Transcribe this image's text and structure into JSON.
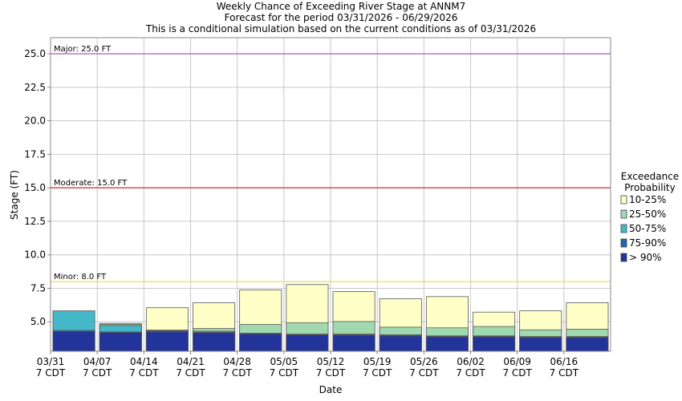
{
  "chart_data": {
    "type": "bar",
    "title": "Weekly Chance of Exceeding River Stage at ANNM7",
    "subtitle1": "Forecast for the period 03/31/2026 - 06/29/2026",
    "subtitle2": "This is a conditional simulation based on the current conditions as of 03/31/2026",
    "xlabel": "Date",
    "ylabel": "Stage (FT)",
    "ylim": [
      2.8,
      26.2
    ],
    "y_ticks": [
      "5.0",
      "7.5",
      "10.0",
      "12.5",
      "15.0",
      "17.5",
      "20.0",
      "22.5",
      "25.0"
    ],
    "y_tick_values": [
      5.0,
      7.5,
      10.0,
      12.5,
      15.0,
      17.5,
      20.0,
      22.5,
      25.0
    ],
    "x_tick_labels": [
      {
        "date": "03/31",
        "sub": "7 CDT"
      },
      {
        "date": "04/07",
        "sub": "7 CDT"
      },
      {
        "date": "04/14",
        "sub": "7 CDT"
      },
      {
        "date": "04/21",
        "sub": "7 CDT"
      },
      {
        "date": "04/28",
        "sub": "7 CDT"
      },
      {
        "date": "05/05",
        "sub": "7 CDT"
      },
      {
        "date": "05/12",
        "sub": "7 CDT"
      },
      {
        "date": "05/19",
        "sub": "7 CDT"
      },
      {
        "date": "05/26",
        "sub": "7 CDT"
      },
      {
        "date": "06/02",
        "sub": "7 CDT"
      },
      {
        "date": "06/09",
        "sub": "7 CDT"
      },
      {
        "date": "06/16",
        "sub": "7 CDT"
      }
    ],
    "flood_stages": [
      {
        "label": "Major: 25.0 FT",
        "value": 25.0,
        "color": "#b040c0"
      },
      {
        "label": "Moderate: 15.0 FT",
        "value": 15.0,
        "color": "#d03030"
      },
      {
        "label": "Minor: 8.0 FT",
        "value": 8.0,
        "color": "#e8e060"
      }
    ],
    "legend": {
      "title_line1": "Exceedance",
      "title_line2": "Probability",
      "placement": "right"
    },
    "series": [
      {
        "name": "> 90%",
        "color": "#223399",
        "values": [
          4.28,
          4.2,
          4.25,
          4.18,
          4.08,
          4.02,
          4.0,
          3.95,
          3.88,
          3.88,
          3.82,
          3.82
        ]
      },
      {
        "name": "75-90%",
        "color": "#2266aa",
        "values": [
          4.35,
          4.25,
          4.3,
          4.22,
          4.12,
          4.05,
          4.05,
          4.0,
          3.92,
          3.92,
          3.86,
          3.86
        ]
      },
      {
        "name": "50-75%",
        "color": "#44b8c8",
        "values": [
          5.82,
          4.72,
          4.35,
          4.3,
          4.15,
          4.08,
          4.08,
          4.03,
          3.95,
          3.95,
          3.9,
          3.9
        ]
      },
      {
        "name": "25-50%",
        "color": "#a0d8b0",
        "values": [
          4.35,
          4.8,
          4.38,
          4.5,
          4.8,
          4.92,
          5.02,
          4.6,
          4.55,
          4.65,
          4.4,
          4.45
        ]
      },
      {
        "name": "10-25%",
        "color": "#ffffc8",
        "values": [
          4.4,
          4.88,
          6.05,
          6.42,
          7.38,
          7.78,
          7.25,
          6.72,
          6.88,
          5.72,
          5.82,
          6.42
        ]
      }
    ]
  }
}
